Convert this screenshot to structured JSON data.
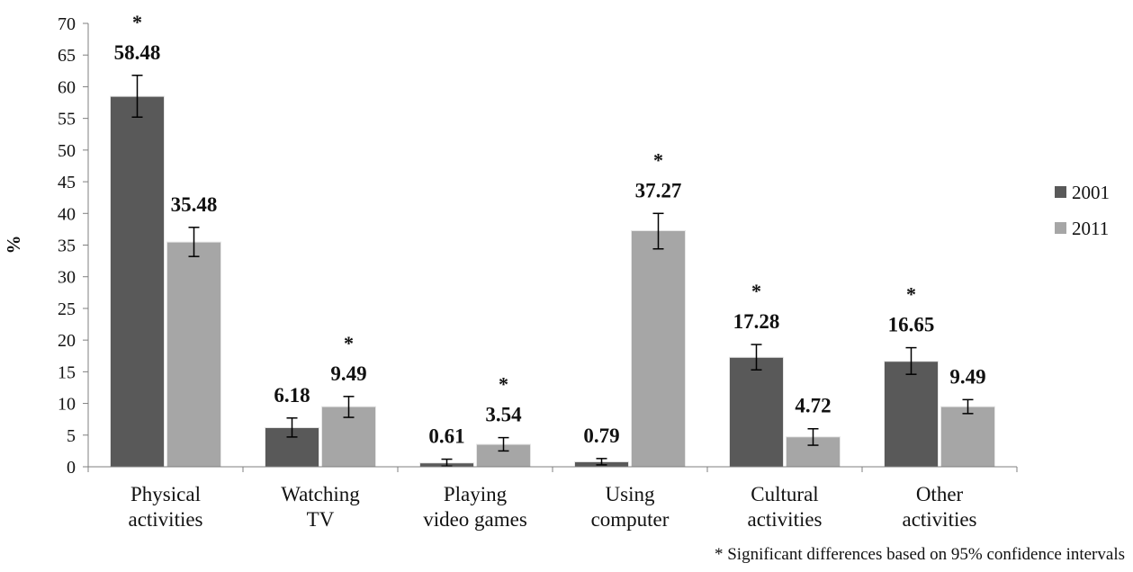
{
  "chart_data": {
    "type": "bar",
    "title": "",
    "xlabel": "",
    "ylabel": "%",
    "ylim": [
      0,
      70
    ],
    "yticks": [
      0,
      5,
      10,
      15,
      20,
      25,
      30,
      35,
      40,
      45,
      50,
      55,
      60,
      65,
      70
    ],
    "categories": [
      [
        "Physical",
        "activities"
      ],
      [
        "Watching",
        "TV"
      ],
      [
        "Playing",
        "video games"
      ],
      [
        "Using",
        "computer"
      ],
      [
        "Cultural",
        "activities"
      ],
      [
        "Other",
        "activities"
      ]
    ],
    "series": [
      {
        "name": "2001",
        "color": "#595959",
        "values": [
          58.48,
          6.18,
          0.61,
          0.79,
          17.28,
          16.65
        ],
        "labels": [
          "58.48",
          "6.18",
          "0.61",
          "0.79",
          "17.28",
          "16.65"
        ],
        "error_low": [
          55.2,
          4.7,
          0.1,
          0.3,
          15.3,
          14.6
        ],
        "error_high": [
          61.8,
          7.7,
          1.2,
          1.3,
          19.3,
          18.8
        ]
      },
      {
        "name": "2011",
        "color": "#a6a6a6",
        "values": [
          35.48,
          9.49,
          3.54,
          37.27,
          4.72,
          9.49
        ],
        "labels": [
          "35.48",
          "9.49",
          "3.54",
          "37.27",
          "4.72",
          "9.49"
        ],
        "error_low": [
          33.2,
          7.8,
          2.5,
          34.4,
          3.4,
          8.4
        ],
        "error_high": [
          37.8,
          11.1,
          4.6,
          40.0,
          6.0,
          10.6
        ]
      }
    ],
    "significance_marker": "*",
    "significant_categories": [
      0,
      1,
      2,
      3,
      4,
      5
    ],
    "legend": {
      "position": "right",
      "entries": [
        "2001",
        "2011"
      ]
    },
    "grid": false,
    "footnote": "* Significant  differences based on 95%  confidence intervals"
  }
}
